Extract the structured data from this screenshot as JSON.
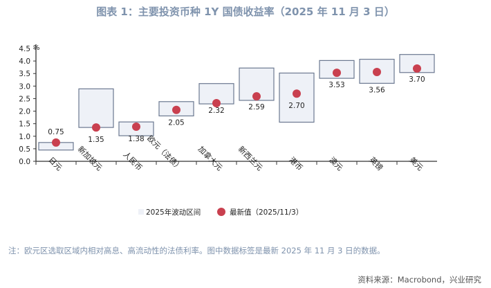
{
  "title": "图表 1：主要投资币种 1Y 国债收益率（2025 年 11 月 3 日）",
  "note": "注：欧元区选取区域内相对高息、高流动性的法债利率。图中数据标签是最新 2025 年 11 月 3 日的数据。",
  "source": "资料来源：Macrobond，兴业研究",
  "chart_data": {
    "type": "floating-bar+scatter",
    "ylabel": "%",
    "ylim": [
      0,
      4.5
    ],
    "yticks": [
      "0.0",
      "0.5",
      "1.0",
      "1.5",
      "2.0",
      "2.5",
      "3.0",
      "3.5",
      "4.0",
      "4.5"
    ],
    "categories": [
      "日元",
      "新加坡元",
      "人民币",
      "欧元（法债）",
      "加拿大元",
      "新西兰元",
      "港币",
      "澳元",
      "英镑",
      "美元"
    ],
    "series": [
      {
        "name": "2025年波动区间",
        "type": "range",
        "color": "#eef1f7",
        "stroke": "#6b7890",
        "low": [
          0.45,
          1.35,
          1.02,
          1.81,
          2.29,
          2.43,
          1.56,
          3.31,
          3.11,
          3.54
        ],
        "high": [
          0.75,
          2.89,
          1.57,
          2.38,
          3.1,
          3.72,
          3.52,
          4.02,
          4.07,
          4.26
        ]
      },
      {
        "name": "最新值（2025/11/3）",
        "type": "scatter",
        "color": "#c9404f",
        "values": [
          0.75,
          1.35,
          1.38,
          2.05,
          2.32,
          2.59,
          2.7,
          3.53,
          3.56,
          3.7
        ],
        "labels": [
          "0.75",
          "1.35",
          "1.38",
          "2.05",
          "2.32",
          "2.59",
          "2.70",
          "3.53",
          "3.56",
          "3.70"
        ]
      }
    ],
    "legend": "bottom-center",
    "grid": false
  }
}
